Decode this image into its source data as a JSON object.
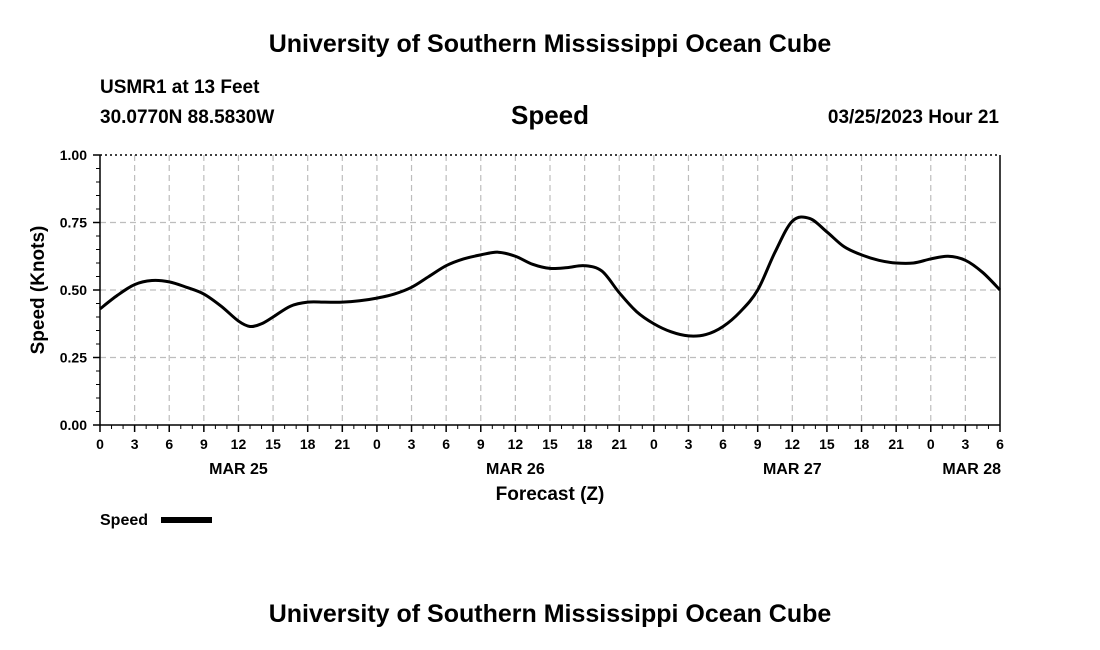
{
  "header": {
    "title": "University of Southern Mississippi Ocean Cube",
    "station": "USMR1 at 13 Feet",
    "coords": "30.0770N  88.5830W",
    "variable": "Speed",
    "datetime": "03/25/2023 Hour 21"
  },
  "footer": {
    "title": "University of Southern Mississippi Ocean Cube"
  },
  "chart_data": {
    "type": "line",
    "title": "Speed",
    "xlabel": "Forecast (Z)",
    "ylabel": "Speed (Knots)",
    "ylim": [
      0,
      1
    ],
    "xlim_hours": [
      0,
      78
    ],
    "grid": true,
    "y_ticks": [
      {
        "value": 0.0,
        "label": "0.00"
      },
      {
        "value": 0.25,
        "label": "0.25"
      },
      {
        "value": 0.5,
        "label": "0.50"
      },
      {
        "value": 0.75,
        "label": "0.75"
      },
      {
        "value": 1.0,
        "label": "1.00"
      }
    ],
    "x_ticks": [
      {
        "hour": 0,
        "label": "0"
      },
      {
        "hour": 3,
        "label": "3"
      },
      {
        "hour": 6,
        "label": "6"
      },
      {
        "hour": 9,
        "label": "9"
      },
      {
        "hour": 12,
        "label": "12"
      },
      {
        "hour": 15,
        "label": "15"
      },
      {
        "hour": 18,
        "label": "18"
      },
      {
        "hour": 21,
        "label": "21"
      },
      {
        "hour": 24,
        "label": "0"
      },
      {
        "hour": 27,
        "label": "3"
      },
      {
        "hour": 30,
        "label": "6"
      },
      {
        "hour": 33,
        "label": "9"
      },
      {
        "hour": 36,
        "label": "12"
      },
      {
        "hour": 39,
        "label": "15"
      },
      {
        "hour": 42,
        "label": "18"
      },
      {
        "hour": 45,
        "label": "21"
      },
      {
        "hour": 48,
        "label": "0"
      },
      {
        "hour": 51,
        "label": "3"
      },
      {
        "hour": 54,
        "label": "6"
      },
      {
        "hour": 57,
        "label": "9"
      },
      {
        "hour": 60,
        "label": "12"
      },
      {
        "hour": 63,
        "label": "15"
      },
      {
        "hour": 66,
        "label": "18"
      },
      {
        "hour": 69,
        "label": "21"
      },
      {
        "hour": 72,
        "label": "0"
      },
      {
        "hour": 75,
        "label": "3"
      },
      {
        "hour": 78,
        "label": "6"
      }
    ],
    "date_labels": [
      {
        "hour": 12,
        "label": "MAR 25"
      },
      {
        "hour": 36,
        "label": "MAR 26"
      },
      {
        "hour": 60,
        "label": "MAR 27"
      },
      {
        "hour": 78,
        "label": "MAR 28"
      }
    ],
    "series": [
      {
        "name": "Speed",
        "color": "#000000",
        "hours": [
          0,
          1.5,
          3,
          4.5,
          6,
          7.5,
          9,
          10.5,
          12,
          13,
          14,
          15,
          16.5,
          18,
          19.5,
          21,
          22.5,
          24,
          25.5,
          27,
          28.5,
          30,
          31.5,
          33,
          34.5,
          36,
          37.5,
          39,
          40.5,
          42,
          43.5,
          45,
          46.5,
          48,
          49.5,
          51,
          52.5,
          54,
          55.5,
          57,
          58.5,
          60,
          61.5,
          63,
          64.5,
          66,
          67.5,
          69,
          70.5,
          72,
          73.5,
          75,
          76.5,
          78
        ],
        "values": [
          0.43,
          0.48,
          0.52,
          0.535,
          0.53,
          0.51,
          0.485,
          0.44,
          0.385,
          0.365,
          0.375,
          0.4,
          0.44,
          0.455,
          0.455,
          0.455,
          0.46,
          0.47,
          0.485,
          0.51,
          0.55,
          0.59,
          0.615,
          0.63,
          0.64,
          0.625,
          0.595,
          0.58,
          0.583,
          0.59,
          0.57,
          0.49,
          0.42,
          0.375,
          0.345,
          0.33,
          0.335,
          0.365,
          0.42,
          0.5,
          0.64,
          0.755,
          0.765,
          0.715,
          0.66,
          0.63,
          0.61,
          0.6,
          0.6,
          0.615,
          0.625,
          0.61,
          0.565,
          0.5
        ]
      }
    ],
    "legend": {
      "label": "Speed",
      "position": "bottom-left"
    }
  }
}
